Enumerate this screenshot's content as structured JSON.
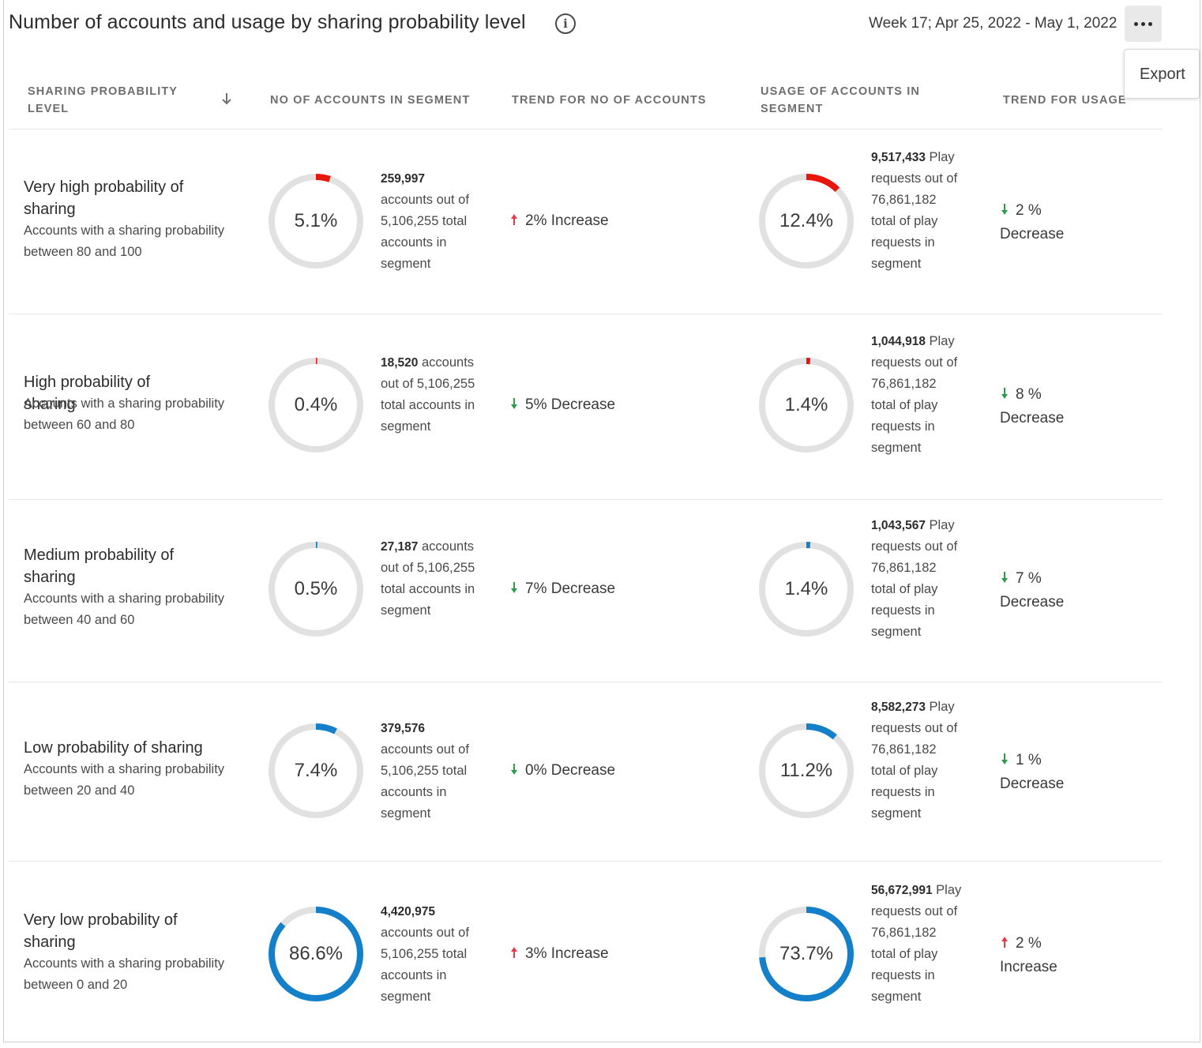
{
  "header": {
    "title": "Number of accounts and usage by sharing probability level",
    "week_range": "Week 17; Apr 25, 2022 - May 1, 2022",
    "more_icon": "more-horizontal-icon",
    "info_icon": "info-icon"
  },
  "menu": {
    "export_label": "Export"
  },
  "columns": {
    "level": "SHARING PROBABILITY LEVEL",
    "accounts": "NO OF ACCOUNTS IN SEGMENT",
    "trend_accounts": "TREND FOR NO OF ACCOUNTS",
    "usage": "USAGE OF ACCOUNTS IN SEGMENT",
    "trend_usage": "TREND FOR USAGE"
  },
  "colors": {
    "red": "#e8170c",
    "blue": "#1380c9",
    "track": "#e1e1e1",
    "increase_arrow": "#e8394a",
    "decrease_arrow": "#2d9d4c"
  },
  "rows": [
    {
      "name": "Very high probability of sharing",
      "desc": "Accounts with a sharing probability between 80 and 100",
      "accounts_pct": 5.1,
      "accounts_pct_label": "5.1%",
      "accounts_count": "259,997",
      "accounts_text": "accounts out of 5,106,255 total accounts in segment",
      "accounts_trend": "2% Increase",
      "accounts_trend_dir": "up",
      "usage_pct": 12.4,
      "usage_pct_label": "12.4%",
      "usage_count": "9,517,433",
      "usage_text": "Play requests out of 76,861,182 total of play requests in segment",
      "usage_trend_value": "2 %",
      "usage_trend_word": "Decrease",
      "usage_trend_dir": "down",
      "color": "red"
    },
    {
      "name": "High probability of sharing",
      "desc": "Accounts with a sharing probability between 60 and 80",
      "accounts_pct": 0.4,
      "accounts_pct_label": "0.4%",
      "accounts_count": "18,520",
      "accounts_text": "accounts out of 5,106,255 total accounts in segment",
      "accounts_trend": "5% Decrease",
      "accounts_trend_dir": "down",
      "usage_pct": 1.4,
      "usage_pct_label": "1.4%",
      "usage_count": "1,044,918",
      "usage_text": "Play requests out of 76,861,182 total of play requests in segment",
      "usage_trend_value": "8 %",
      "usage_trend_word": "Decrease",
      "usage_trend_dir": "down",
      "color": "red"
    },
    {
      "name": "Medium probability of sharing",
      "desc": "Accounts with a sharing probability between 40 and 60",
      "accounts_pct": 0.5,
      "accounts_pct_label": "0.5%",
      "accounts_count": "27,187",
      "accounts_text": "accounts out of 5,106,255 total accounts in segment",
      "accounts_trend": "7% Decrease",
      "accounts_trend_dir": "down",
      "usage_pct": 1.4,
      "usage_pct_label": "1.4%",
      "usage_count": "1,043,567",
      "usage_text": "Play requests out of 76,861,182 total of play requests in segment",
      "usage_trend_value": "7 %",
      "usage_trend_word": "Decrease",
      "usage_trend_dir": "down",
      "color": "blue"
    },
    {
      "name": "Low probability of sharing",
      "desc": "Accounts with a sharing probability between 20 and 40",
      "accounts_pct": 7.4,
      "accounts_pct_label": "7.4%",
      "accounts_count": "379,576",
      "accounts_text": "accounts out of 5,106,255 total accounts in segment",
      "accounts_trend": "0% Decrease",
      "accounts_trend_dir": "down",
      "usage_pct": 11.2,
      "usage_pct_label": "11.2%",
      "usage_count": "8,582,273",
      "usage_text": "Play requests out of 76,861,182 total of play requests in segment",
      "usage_trend_value": "1 %",
      "usage_trend_word": "Decrease",
      "usage_trend_dir": "down",
      "color": "blue"
    },
    {
      "name": "Very low probability of sharing",
      "desc": "Accounts with a sharing probability between 0 and 20",
      "accounts_pct": 86.6,
      "accounts_pct_label": "86.6%",
      "accounts_count": "4,420,975",
      "accounts_text": "accounts out of 5,106,255 total accounts in segment",
      "accounts_trend": "3% Increase",
      "accounts_trend_dir": "up",
      "usage_pct": 73.7,
      "usage_pct_label": "73.7%",
      "usage_count": "56,672,991",
      "usage_text": "Play requests out of 76,861,182 total of play requests in segment",
      "usage_trend_value": "2 %",
      "usage_trend_word": "Increase",
      "usage_trend_dir": "up",
      "color": "blue"
    }
  ]
}
